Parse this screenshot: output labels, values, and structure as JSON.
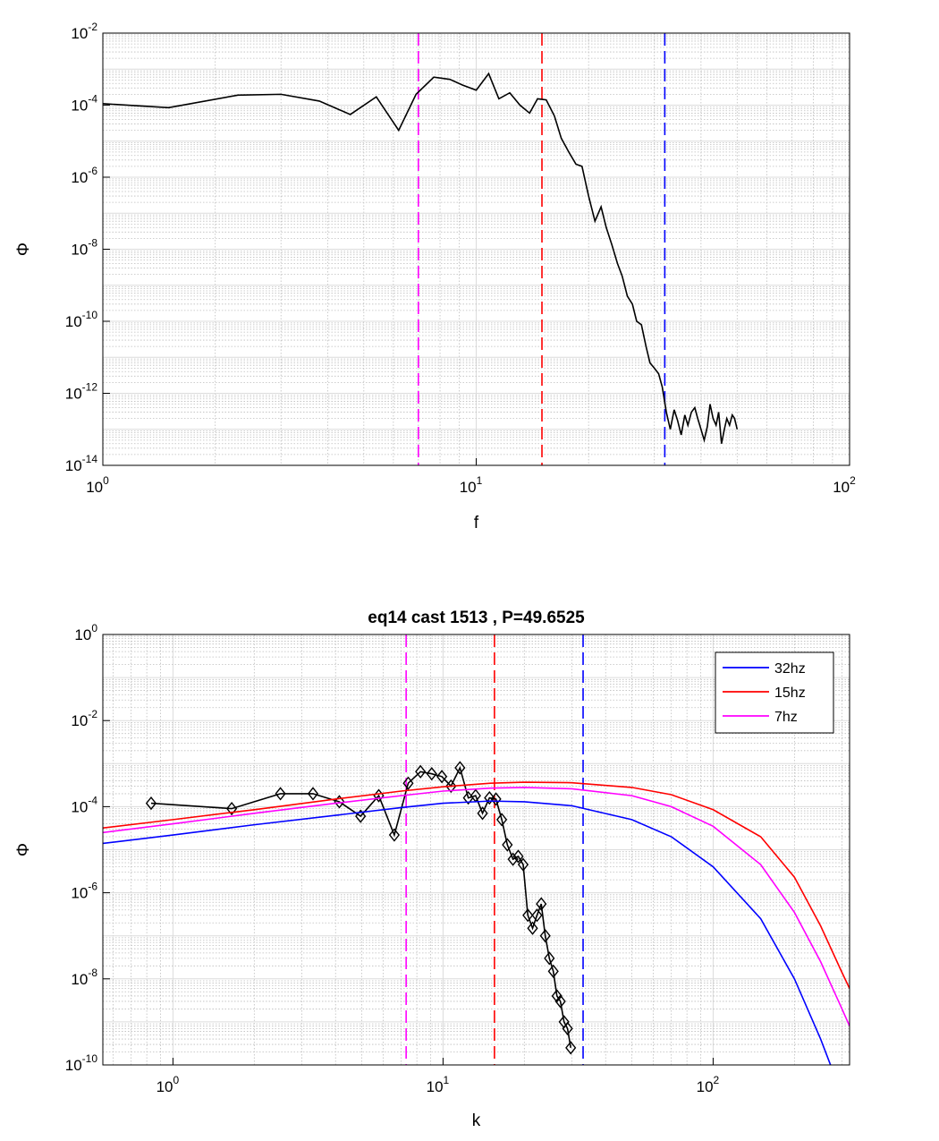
{
  "colors": {
    "black": "#000000",
    "blue": "#0000ff",
    "red": "#ff0000",
    "magenta": "#ff00ff",
    "grid_major": "#dcdcdc",
    "grid_minor": "#bdbdbd"
  },
  "chart_data": [
    {
      "type": "line",
      "title": "",
      "xlabel": "f",
      "ylabel": "Φ",
      "xscale": "log",
      "yscale": "log",
      "xlim": [
        1,
        100
      ],
      "ylim": [
        1e-14,
        0.01
      ],
      "xticks": [
        {
          "base": "10",
          "exp": "0",
          "value": 1
        },
        {
          "base": "10",
          "exp": "1",
          "value": 10
        },
        {
          "base": "10",
          "exp": "2",
          "value": 100
        }
      ],
      "yticks": [
        {
          "base": "10",
          "exp": "-2",
          "value": 0.01
        },
        {
          "base": "10",
          "exp": "-4",
          "value": 0.0001
        },
        {
          "base": "10",
          "exp": "-6",
          "value": 1e-06
        },
        {
          "base": "10",
          "exp": "-8",
          "value": 1e-08
        },
        {
          "base": "10",
          "exp": "-10",
          "value": 1e-10
        },
        {
          "base": "10",
          "exp": "-12",
          "value": 1e-12
        },
        {
          "base": "10",
          "exp": "-14",
          "value": 1e-14
        }
      ],
      "grid": true,
      "vlines": [
        {
          "x": 7,
          "color": "magenta"
        },
        {
          "x": 15,
          "color": "red"
        },
        {
          "x": 32,
          "color": "blue"
        }
      ],
      "series": [
        {
          "color": "black",
          "marker": "none",
          "x": [
            1.0,
            1.5,
            2.3,
            3.0,
            3.8,
            4.6,
            5.4,
            6.2,
            6.9,
            7.7,
            8.5,
            9.2,
            10.0,
            10.8,
            11.5,
            12.3,
            13.1,
            13.9,
            14.6,
            15.4,
            16.2,
            16.9,
            17.7,
            18.5,
            19.2,
            20.0,
            20.8,
            21.6,
            22.3,
            23.1,
            23.9,
            24.6,
            25.4,
            26.2,
            26.9,
            27.7,
            28.5,
            29.2,
            30.0,
            30.8,
            31.5,
            32.3,
            33.1,
            33.9,
            34.6,
            35.4,
            36.2,
            36.9,
            37.7,
            38.5,
            39.2,
            40.0,
            40.8,
            41.6,
            42.3,
            43.1,
            43.9,
            44.6,
            45.4,
            46.2,
            46.9,
            47.7,
            48.5,
            49.2,
            50.0
          ],
          "y": [
            0.00011,
            8.5e-05,
            0.00019,
            0.0002,
            0.00013,
            5.5e-05,
            0.00017,
            2e-05,
            0.0002,
            0.0006,
            0.00052,
            0.00036,
            0.00026,
            0.00075,
            0.00015,
            0.00022,
            0.0001,
            6e-05,
            0.00015,
            0.00014,
            5e-05,
            1.2e-05,
            5e-06,
            2.3e-06,
            2e-06,
            3e-07,
            6e-08,
            1.5e-07,
            4e-08,
            1.3e-08,
            4e-09,
            1.8e-09,
            5e-10,
            3e-10,
            1e-10,
            8e-11,
            2e-11,
            7e-12,
            5e-12,
            3.5e-12,
            1.5e-12,
            3e-13,
            1e-13,
            3.5e-13,
            1.8e-13,
            7e-14,
            2.5e-13,
            1.3e-13,
            3e-13,
            4e-13,
            2e-13,
            1e-13,
            5e-14,
            1.2e-13,
            5e-13,
            2e-13,
            1.3e-13,
            3e-13,
            4e-14,
            1e-13,
            2e-13,
            1.3e-13,
            2.5e-13,
            2e-13,
            1e-13
          ]
        }
      ]
    },
    {
      "type": "line",
      "title": "eq14 cast 1513 , P=49.6525",
      "xlabel": "k",
      "ylabel": "Φ",
      "xscale": "log",
      "yscale": "log",
      "xlim": [
        0.55,
        320
      ],
      "ylim": [
        1e-10,
        1
      ],
      "xticks": [
        {
          "base": "10",
          "exp": "0",
          "value": 1
        },
        {
          "base": "10",
          "exp": "1",
          "value": 10
        },
        {
          "base": "10",
          "exp": "2",
          "value": 100
        }
      ],
      "yticks": [
        {
          "base": "10",
          "exp": "0",
          "value": 1
        },
        {
          "base": "10",
          "exp": "-2",
          "value": 0.01
        },
        {
          "base": "10",
          "exp": "-4",
          "value": 0.0001
        },
        {
          "base": "10",
          "exp": "-6",
          "value": 1e-06
        },
        {
          "base": "10",
          "exp": "-8",
          "value": 1e-08
        },
        {
          "base": "10",
          "exp": "-10",
          "value": 1e-10
        }
      ],
      "grid": true,
      "legend": {
        "position": "top-right",
        "entries": [
          {
            "label": "32hz",
            "color": "blue"
          },
          {
            "label": "15hz",
            "color": "red"
          },
          {
            "label": "7hz",
            "color": "magenta"
          }
        ]
      },
      "vlines": [
        {
          "x": 7.3,
          "color": "magenta"
        },
        {
          "x": 15.5,
          "color": "red"
        },
        {
          "x": 33,
          "color": "blue"
        }
      ],
      "series": [
        {
          "color": "black",
          "marker": "diamond",
          "x": [
            0.83,
            1.65,
            2.5,
            3.3,
            4.13,
            4.95,
            5.78,
            6.6,
            7.43,
            8.25,
            9.08,
            9.9,
            10.7,
            11.55,
            12.4,
            13.2,
            14.0,
            14.85,
            15.7,
            16.5,
            17.3,
            18.15,
            18.98,
            19.8,
            20.6,
            21.45,
            22.28,
            23.1,
            23.9,
            24.75,
            25.6,
            26.4,
            27.2,
            28.05,
            28.9,
            29.7
          ],
          "y": [
            0.00012,
            9e-05,
            0.0002,
            0.0002,
            0.00013,
            6e-05,
            0.00018,
            2.2e-05,
            0.00035,
            0.00065,
            0.00058,
            0.0005,
            0.0003,
            0.0008,
            0.00016,
            0.00018,
            7e-05,
            0.00016,
            0.00015,
            5e-05,
            1.3e-05,
            6e-06,
            7e-06,
            4.5e-06,
            3e-07,
            1.5e-07,
            3e-07,
            5.5e-07,
            1e-07,
            3e-08,
            1.5e-08,
            4e-09,
            3e-09,
            1e-09,
            7e-10,
            2.5e-10
          ]
        },
        {
          "name": "32hz",
          "color": "blue",
          "marker": "none",
          "x": [
            0.55,
            1,
            2,
            4,
            7,
            10,
            15,
            20,
            30,
            50,
            70,
            100,
            150,
            200,
            250,
            300
          ],
          "y": [
            1.4e-05,
            2.2e-05,
            3.8e-05,
            6.3e-05,
            9.5e-05,
            0.00012,
            0.000135,
            0.00013,
            0.000105,
            5e-05,
            2e-05,
            4e-06,
            2.5e-07,
            1e-08,
            4e-10,
            2e-11
          ]
        },
        {
          "name": "15hz",
          "color": "red",
          "marker": "none",
          "x": [
            0.55,
            1,
            2,
            4,
            7,
            10,
            15,
            20,
            30,
            50,
            70,
            100,
            150,
            200,
            250,
            300,
            320
          ],
          "y": [
            3.2e-05,
            5e-05,
            8.5e-05,
            0.00015,
            0.00023,
            0.00029,
            0.00035,
            0.00037,
            0.00036,
            0.00028,
            0.00019,
            8.5e-05,
            2e-05,
            2.3e-06,
            1.7e-07,
            1.4e-08,
            6e-09
          ]
        },
        {
          "name": "7hz",
          "color": "magenta",
          "marker": "none",
          "x": [
            0.55,
            1,
            2,
            4,
            7,
            10,
            15,
            20,
            30,
            50,
            70,
            100,
            150,
            200,
            250,
            300,
            320
          ],
          "y": [
            2.5e-05,
            4e-05,
            7e-05,
            0.00012,
            0.00018,
            0.00023,
            0.00027,
            0.00028,
            0.00026,
            0.00018,
            0.0001,
            3.5e-05,
            4.5e-06,
            3.5e-07,
            2.5e-08,
            2e-09,
            8e-10
          ]
        }
      ]
    }
  ]
}
